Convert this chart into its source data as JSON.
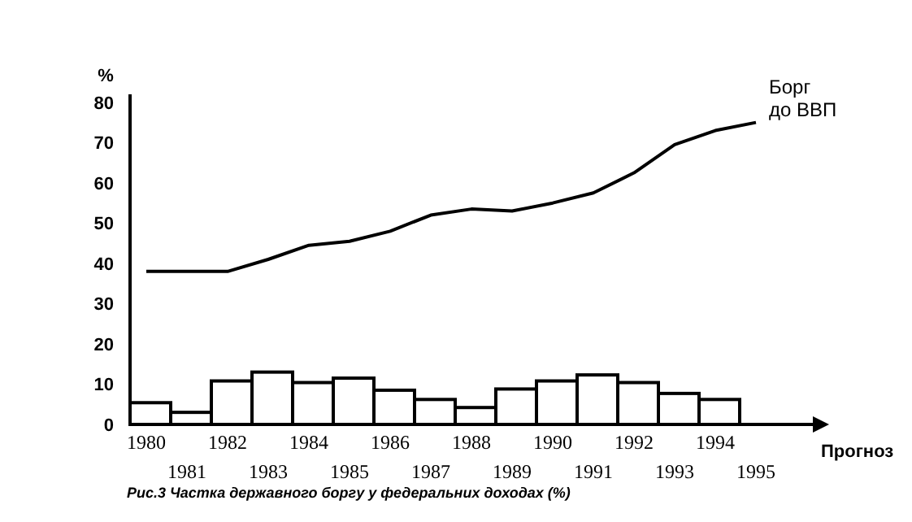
{
  "chart_data": {
    "type": "bar",
    "ylabel": "%",
    "categories": [
      "1980",
      "1981",
      "1982",
      "1983",
      "1984",
      "1985",
      "1986",
      "1987",
      "1988",
      "1989",
      "1990",
      "1991",
      "1992",
      "1993",
      "1994",
      "1995"
    ],
    "series": [
      {
        "color": "#ffffff",
        "values": [
          5.4,
          3,
          10.8,
          13,
          10.4,
          11.5,
          8.5,
          6.2,
          4.2,
          8.8,
          10.8,
          12.3,
          10.4,
          7.7,
          6.2,
          null
        ]
      },
      {
        "type": "line",
        "name": "Борг до ВВП",
        "color": "#000000",
        "values": [
          38,
          38,
          38,
          41,
          44.5,
          45.5,
          48,
          52,
          53.5,
          53,
          55,
          57.5,
          62.5,
          69.5,
          73,
          75
        ]
      }
    ],
    "ylim": [
      0,
      82
    ],
    "yticks": [
      0,
      10,
      20,
      30,
      40,
      50,
      60,
      70,
      80
    ],
    "grid": false,
    "marker": "none",
    "line_style": "solid",
    "annotations": [
      "Прогноз",
      "Рис.3  Частка державного боргу у федеральних доходах (%)"
    ]
  }
}
